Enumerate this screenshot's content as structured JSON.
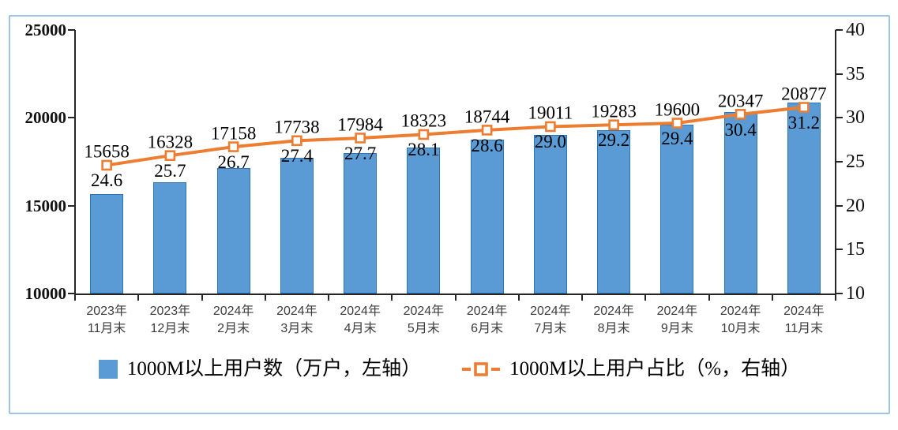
{
  "chart_data": {
    "type": "bar",
    "combo": "bar+line dual-axis",
    "title": "",
    "categories": [
      "2023年\n11月末",
      "2023年\n12月末",
      "2024年\n2月末",
      "2024年\n3月末",
      "2024年\n4月末",
      "2024年\n5月末",
      "2024年\n6月末",
      "2024年\n7月末",
      "2024年\n8月末",
      "2024年\n9月末",
      "2024年\n10月末",
      "2024年\n11月末"
    ],
    "series": [
      {
        "name": "1000M以上用户数（万户，左轴）",
        "type": "bar",
        "axis": "left",
        "values": [
          15658,
          16328,
          17158,
          17738,
          17984,
          18323,
          18744,
          19011,
          19283,
          19600,
          20347,
          20877
        ],
        "labels": [
          "15658",
          "16328",
          "17158",
          "17738",
          "17984",
          "18323",
          "18744",
          "19011",
          "19283",
          "19600",
          "20347",
          "20877"
        ],
        "fill_color": "#5B9BD5",
        "border_color": "#2E75B6"
      },
      {
        "name": "1000M以上用户占比（%，右轴）",
        "type": "line",
        "axis": "right",
        "values": [
          24.6,
          25.7,
          26.7,
          27.4,
          27.7,
          28.1,
          28.6,
          29.0,
          29.2,
          29.4,
          30.4,
          31.2
        ],
        "labels": [
          "24.6",
          "25.7",
          "26.7",
          "27.4",
          "27.7",
          "28.1",
          "28.6",
          "29.0",
          "29.2",
          "29.4",
          "30.4",
          "31.2"
        ],
        "color": "#ED7D31",
        "marker": "open-square"
      }
    ],
    "left_axis": {
      "min": 10000,
      "max": 25000,
      "step": 5000,
      "tick_labels": [
        "10000",
        "15000",
        "20000",
        "25000"
      ]
    },
    "right_axis": {
      "min": 10,
      "max": 40,
      "step": 5,
      "tick_labels": [
        "10",
        "15",
        "20",
        "25",
        "30",
        "35",
        "40"
      ]
    },
    "grid": false,
    "legend_position": "bottom",
    "frame_border_color": "#9DC3E6",
    "axis_color": "#262626"
  }
}
